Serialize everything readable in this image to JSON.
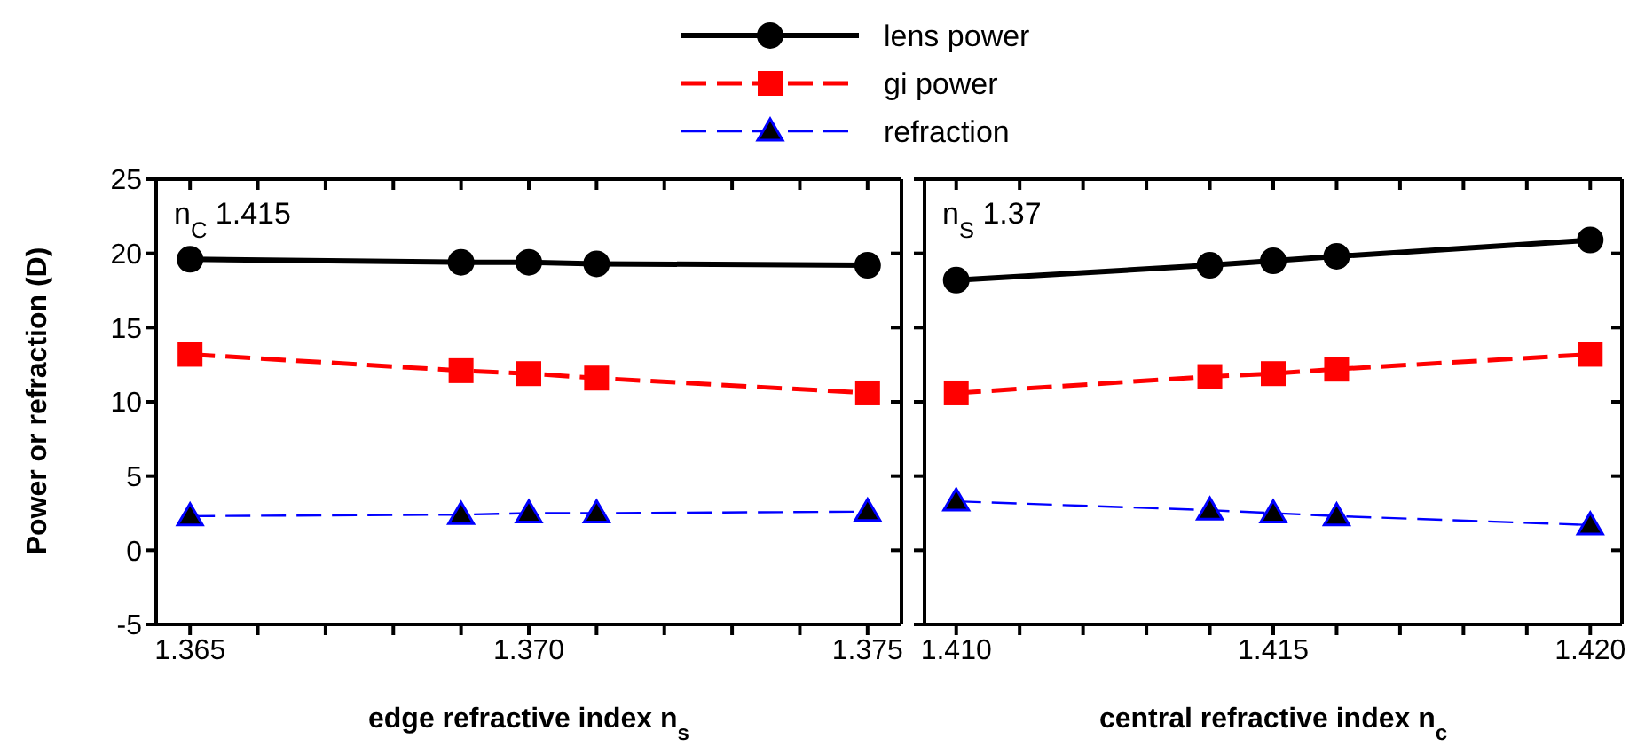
{
  "chart_data": [
    {
      "type": "line",
      "xlabel": "edge refractive index n$_{s}$",
      "ylabel": "Power or refraction (D)",
      "annotations": [
        "n$_{C}$ 1.415"
      ],
      "x": [
        1.365,
        1.369,
        1.37,
        1.371,
        1.375
      ],
      "series": [
        {
          "name": "lens power",
          "color": "#000000",
          "marker": "circle",
          "line_style": "solid",
          "values": [
            19.6,
            19.4,
            19.4,
            19.3,
            19.2
          ]
        },
        {
          "name": "gi power",
          "color": "#ff0000",
          "marker": "square",
          "line_style": "dashed",
          "values": [
            13.2,
            12.1,
            11.9,
            11.6,
            10.6
          ]
        },
        {
          "name": "refraction",
          "color": "#0000ff",
          "marker": "triangle",
          "line_style": "dashed",
          "values": [
            2.3,
            2.4,
            2.5,
            2.5,
            2.6
          ]
        }
      ],
      "xlim": [
        1.3645,
        1.3755
      ],
      "xticks": [
        {
          "value": 1.365,
          "label": "1.365"
        },
        {
          "value": 1.366,
          "label": null
        },
        {
          "value": 1.367,
          "label": null
        },
        {
          "value": 1.368,
          "label": null
        },
        {
          "value": 1.369,
          "label": null
        },
        {
          "value": 1.37,
          "label": "1.370"
        },
        {
          "value": 1.371,
          "label": null
        },
        {
          "value": 1.372,
          "label": null
        },
        {
          "value": 1.373,
          "label": null
        },
        {
          "value": 1.374,
          "label": null
        },
        {
          "value": 1.375,
          "label": "1.375"
        }
      ],
      "ylim": [
        -5,
        25
      ],
      "yticks": [
        -5,
        0,
        5,
        10,
        15,
        20,
        25
      ],
      "grid": false,
      "legend": "top"
    },
    {
      "type": "line",
      "xlabel": "central refractive index n$_{c}$",
      "annotations": [
        "n$_{S}$ 1.37"
      ],
      "x": [
        1.41,
        1.414,
        1.415,
        1.416,
        1.42
      ],
      "series": [
        {
          "color": "#000000",
          "marker": "circle",
          "line_style": "solid",
          "values": [
            18.2,
            19.2,
            19.5,
            19.8,
            20.9
          ]
        },
        {
          "color": "#ff0000",
          "marker": "square",
          "line_style": "dashed",
          "values": [
            10.6,
            11.7,
            11.9,
            12.2,
            13.2
          ]
        },
        {
          "color": "#0000ff",
          "marker": "triangle",
          "line_style": "dashed",
          "values": [
            3.3,
            2.7,
            2.5,
            2.3,
            1.7
          ]
        }
      ],
      "xlim": [
        1.4095,
        1.4205
      ],
      "xticks": [
        {
          "value": 1.41,
          "label": "1.410"
        },
        {
          "value": 1.411,
          "label": null
        },
        {
          "value": 1.412,
          "label": null
        },
        {
          "value": 1.413,
          "label": null
        },
        {
          "value": 1.414,
          "label": null
        },
        {
          "value": 1.415,
          "label": "1.415"
        },
        {
          "value": 1.416,
          "label": null
        },
        {
          "value": 1.417,
          "label": null
        },
        {
          "value": 1.418,
          "label": null
        },
        {
          "value": 1.419,
          "label": null
        },
        {
          "value": 1.42,
          "label": "1.420"
        }
      ],
      "ylim": [
        -5,
        25
      ],
      "yticks": [
        -5,
        0,
        5,
        10,
        15,
        20,
        25
      ],
      "tick_labels": "x",
      "grid": false,
      "legend": false
    }
  ]
}
